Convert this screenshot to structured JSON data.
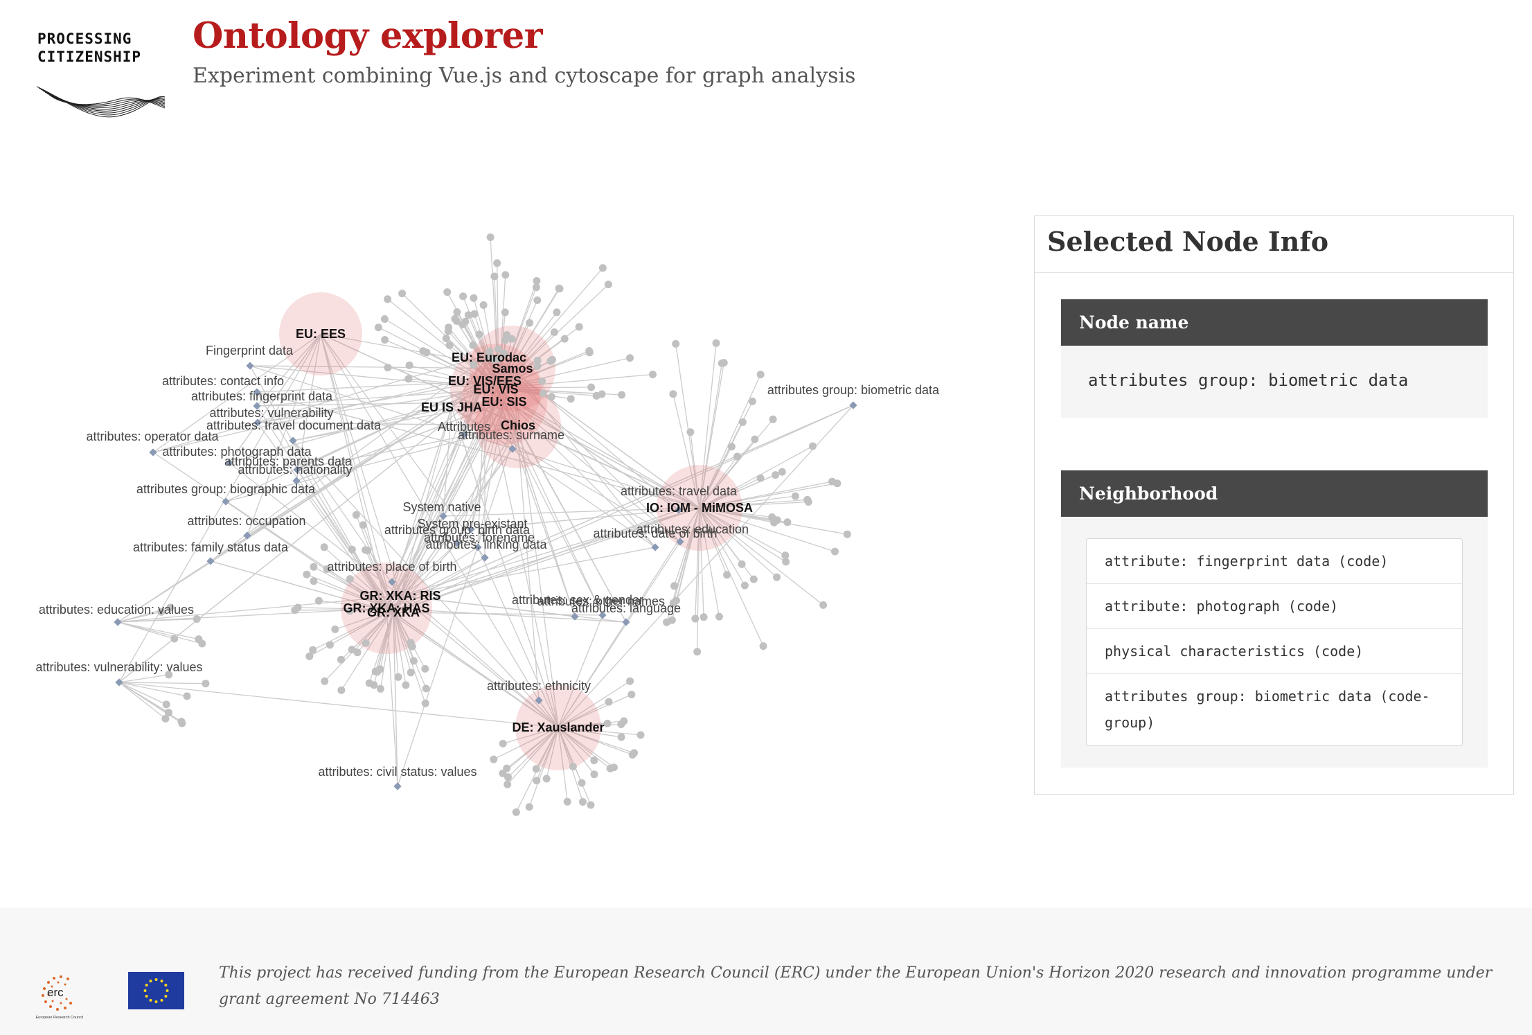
{
  "header": {
    "logo_line1": "PROCESSING",
    "logo_line2": "CITIZENSHIP",
    "title": "Ontology explorer",
    "subtitle": "Experiment combining Vue.js and cytoscape for graph analysis"
  },
  "graph": {
    "colors": {
      "edge": "#cccccc",
      "node": "#c0c0c0",
      "highlight": "#e57373",
      "attribute_node": "#8a9ab5"
    },
    "hubs": [
      {
        "label": "EU: EES",
        "size": "medium"
      },
      {
        "label": "EU: Eurodac",
        "size": "large"
      },
      {
        "label": "Samos",
        "size": "large"
      },
      {
        "label": "EU: VIS/EES",
        "size": "large"
      },
      {
        "label": "EU: VIS",
        "size": "large"
      },
      {
        "label": "EU: SIS",
        "size": "large"
      },
      {
        "label": "EU IS JHA",
        "size": "medium"
      },
      {
        "label": "Chios",
        "size": "large"
      },
      {
        "label": "IO: IOM - MiMOSA",
        "size": "large"
      },
      {
        "label": "GR: XKA: RIS",
        "size": "large"
      },
      {
        "label": "GR: XKA: HAS",
        "size": "large"
      },
      {
        "label": "GR: XKA",
        "size": "medium"
      },
      {
        "label": "DE: Xauslander",
        "size": "large"
      }
    ],
    "attribute_labels": [
      "Fingerprint data",
      "attributes: contact info",
      "attributes: fingerprint data",
      "attributes: vulnerability",
      "attributes: travel document data",
      "attributes: operator data",
      "attributes: photograph data",
      "attributes: parents data",
      "attributes: nationality",
      "attributes group: biographic data",
      "attributes: occupation",
      "attributes: family status data",
      "attributes: education: values",
      "attributes: vulnerability: values",
      "attributes: civil status: values",
      "attributes: place of birth",
      "attributes: ethnicity",
      "attributes group: biometric data",
      "Attributes",
      "attributes: surname",
      "attributes: travel data",
      "attributes: date of birth",
      "attributes: education",
      "System native",
      "System pre-existant",
      "attributes group: birth data",
      "attributes: forename",
      "attributes: linking data",
      "attributes: sex & gender",
      "attributes: other names",
      "attributes: language"
    ]
  },
  "panel": {
    "title": "Selected Node Info",
    "node_name_header": "Node name",
    "node_name_value": "attributes group: biometric data",
    "neighborhood_header": "Neighborhood",
    "neighborhood": [
      "attribute: fingerprint data (code)",
      "attribute: photograph (code)",
      "physical characteristics (code)",
      "attributes group: biometric data (code-group)"
    ]
  },
  "footer": {
    "erc_logo_text": "erc",
    "erc_caption": "European Research Council",
    "funding_text": "This project has received funding from the European Research Council (ERC) under the European Union's Horizon 2020 research and innovation programme under grant agreement No 714463"
  }
}
